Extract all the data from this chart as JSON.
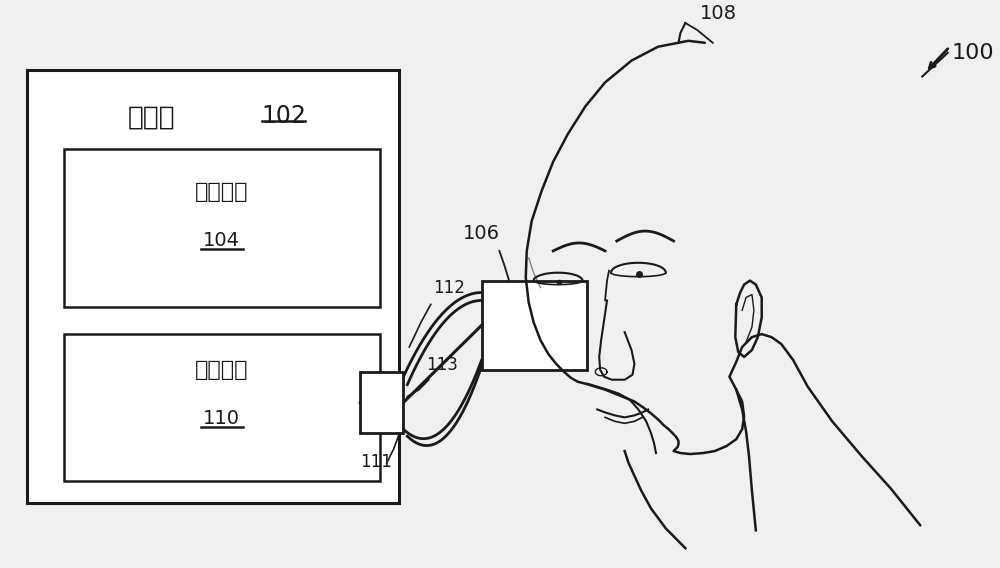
{
  "bg_color": "#f0f0f0",
  "line_color": "#1a1a1a",
  "figsize": [
    10.0,
    5.68
  ],
  "dpi": 100,
  "console_label": "控制台",
  "console_num": "102",
  "ctrl_label": "控制系统",
  "ctrl_num": "104",
  "laser_label": "激光系统",
  "laser_num": "110",
  "label_100": "100",
  "label_106": "106",
  "label_108": "108",
  "label_111": "111",
  "label_112": "112",
  "label_113": "113"
}
